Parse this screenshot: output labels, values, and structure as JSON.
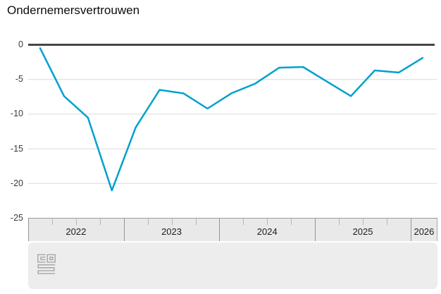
{
  "title": "Ondernemersvertrouwen",
  "chart_data": {
    "type": "line",
    "title": "Ondernemersvertrouwen",
    "categories": [
      "2022 Q1",
      "2022 Q2",
      "2022 Q3",
      "2022 Q4",
      "2023 Q1",
      "2023 Q2",
      "2023 Q3",
      "2023 Q4",
      "2024 Q1",
      "2024 Q2",
      "2024 Q3",
      "2024 Q4",
      "2025 Q1",
      "2025 Q2",
      "2025 Q3",
      "2025 Q4",
      "2026 Q1"
    ],
    "series": [
      {
        "name": "Ondernemersvertrouwen",
        "values": [
          -0.5,
          -7.4,
          -10.5,
          -21.0,
          -11.9,
          -6.5,
          -7.0,
          -9.2,
          -7.0,
          -5.6,
          -3.3,
          -3.2,
          -5.3,
          -7.4,
          -3.7,
          -4.0,
          -1.9
        ]
      }
    ],
    "x_axis": {
      "tick_labels": [
        "2022",
        "2023",
        "2024",
        "2025",
        "2026"
      ],
      "quarter_ticks_per_year": 4
    },
    "y_axis": {
      "ticks": [
        0,
        -5,
        -10,
        -15,
        -20,
        -25
      ],
      "tick_labels": [
        "0",
        "-5",
        "-10",
        "-15",
        "-20",
        "-25"
      ],
      "range": [
        -25,
        0
      ]
    },
    "grid": true,
    "legend": "none",
    "line_color": "#00a1cd",
    "zero_line_color": "#474747",
    "grid_color": "#d9d9d9"
  },
  "footer": {
    "logo_icon": "cbs-logo"
  }
}
